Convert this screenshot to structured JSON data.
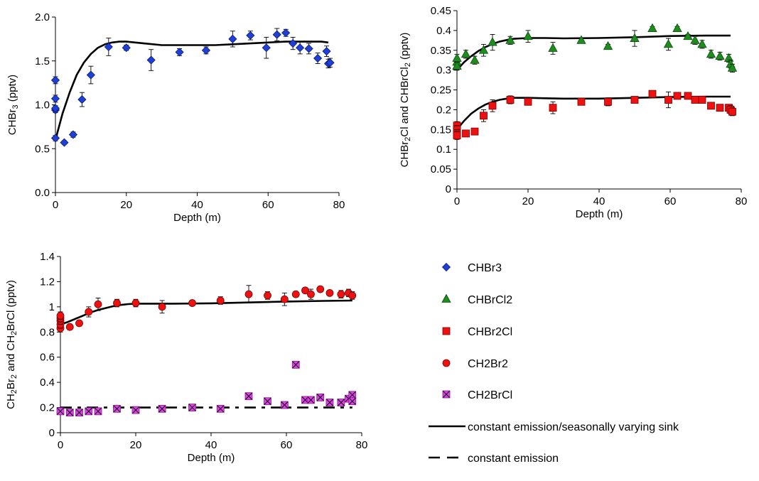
{
  "colors": {
    "CHBr3": "#1f3fd6",
    "CHBrCl2": "#1f8c1f",
    "CHBr2Cl": "#ee1111",
    "CH2Br2": "#ee1111",
    "CH2BrCl": "#e040e8",
    "model": "#000000"
  },
  "legend": {
    "items": [
      {
        "label": "CHBr3",
        "marker": "diamond",
        "color": "#1f3fd6"
      },
      {
        "label": "CHBrCl2",
        "marker": "triangle",
        "color": "#1f8c1f"
      },
      {
        "label": "CHBr2Cl",
        "marker": "square",
        "color": "#ee1111"
      },
      {
        "label": "CH2Br2",
        "marker": "circle",
        "color": "#ee1111"
      },
      {
        "label": "CH2BrCl",
        "marker": "xsquare",
        "color": "#e040e8"
      },
      {
        "label": "constant emission/seasonally varying sink",
        "marker": "solid-line",
        "color": "#000000"
      },
      {
        "label": "constant emission",
        "marker": "dashed-line",
        "color": "#000000"
      }
    ]
  },
  "chart_data": [
    {
      "type": "scatter",
      "title": "",
      "xlabel": "Depth (m)",
      "ylabel": "CHBr3 (pptv)",
      "xlim": [
        0,
        80
      ],
      "ylim": [
        0,
        2.0
      ],
      "xticks": [
        "0",
        "20",
        "40",
        "60",
        "80"
      ],
      "yticks": [
        "0.0",
        "0.5",
        "1.0",
        "1.5",
        "2.0"
      ],
      "grid": false,
      "series": [
        {
          "key": "CHBr3",
          "marker": "diamond",
          "x": [
            0,
            0,
            0,
            0,
            0,
            2.5,
            5,
            7.5,
            10,
            15,
            20,
            27,
            35,
            42.5,
            50,
            55,
            59.5,
            62.5,
            65,
            67,
            69,
            71.5,
            74,
            76.5,
            77,
            77.5
          ],
          "y": [
            0.62,
            0.94,
            0.96,
            1.07,
            1.28,
            0.57,
            0.66,
            1.06,
            1.34,
            1.66,
            1.65,
            1.51,
            1.6,
            1.62,
            1.75,
            1.79,
            1.65,
            1.8,
            1.82,
            1.7,
            1.65,
            1.64,
            1.53,
            1.61,
            1.47,
            1.48
          ],
          "err": [
            0.03,
            0.03,
            0.03,
            0.04,
            0.04,
            0.02,
            0.03,
            0.08,
            0.1,
            0.1,
            0.03,
            0.12,
            0.04,
            0.04,
            0.09,
            0.05,
            0.12,
            0.07,
            0.04,
            0.07,
            0.07,
            0.06,
            0.06,
            0.06,
            0.05,
            0.05
          ]
        }
      ],
      "model_lines": [
        {
          "style": "solid",
          "x": [
            0,
            2,
            4,
            6,
            8,
            10,
            12,
            14,
            16,
            18,
            20,
            25,
            30,
            35,
            40,
            45,
            50,
            55,
            60,
            65,
            70,
            75,
            77
          ],
          "y": [
            0.6,
            0.9,
            1.14,
            1.34,
            1.48,
            1.58,
            1.65,
            1.69,
            1.71,
            1.72,
            1.72,
            1.7,
            1.68,
            1.68,
            1.68,
            1.68,
            1.69,
            1.7,
            1.71,
            1.72,
            1.72,
            1.72,
            1.71
          ]
        }
      ]
    },
    {
      "type": "scatter",
      "title": "",
      "xlabel": "Depth (m)",
      "ylabel": "CHBr2Cl and CHBrCl2 (pptv)",
      "xlim": [
        0,
        80
      ],
      "ylim": [
        0,
        0.45
      ],
      "xticks": [
        "0",
        "20",
        "40",
        "60",
        "80"
      ],
      "yticks": [
        "0",
        "0.05",
        "0.1",
        "0.15",
        "0.2",
        "0.25",
        "0.3",
        "0.35",
        "0.4",
        "0.45"
      ],
      "grid": false,
      "series": [
        {
          "key": "CHBrCl2",
          "marker": "triangle",
          "x": [
            0,
            0,
            0,
            0,
            2.5,
            5,
            7.5,
            10,
            15,
            20,
            27,
            35,
            42.5,
            50,
            55,
            59.5,
            62,
            65,
            67,
            69,
            71.5,
            74,
            76.5,
            77,
            77.5
          ],
          "y": [
            0.31,
            0.32,
            0.33,
            0.31,
            0.34,
            0.325,
            0.35,
            0.37,
            0.375,
            0.385,
            0.355,
            0.375,
            0.36,
            0.38,
            0.405,
            0.365,
            0.405,
            0.385,
            0.375,
            0.365,
            0.34,
            0.335,
            0.33,
            0.315,
            0.305
          ],
          "err": [
            0.01,
            0.01,
            0.01,
            0.01,
            0.01,
            0.01,
            0.015,
            0.02,
            0.01,
            0.015,
            0.015,
            0.005,
            0.005,
            0.02,
            0.005,
            0.015,
            0.005,
            0.005,
            0.01,
            0.01,
            0.01,
            0.01,
            0.01,
            0.01,
            0.01
          ]
        },
        {
          "key": "CHBr2Cl",
          "marker": "square",
          "x": [
            0,
            0,
            0,
            0,
            2.5,
            5,
            7.5,
            10,
            15,
            20,
            27,
            35,
            42.5,
            50,
            55,
            59.5,
            62,
            65,
            67,
            69,
            71.5,
            74,
            76.5,
            77,
            77.5
          ],
          "y": [
            0.16,
            0.15,
            0.14,
            0.135,
            0.14,
            0.145,
            0.185,
            0.21,
            0.225,
            0.22,
            0.205,
            0.22,
            0.22,
            0.225,
            0.24,
            0.225,
            0.235,
            0.235,
            0.225,
            0.225,
            0.21,
            0.205,
            0.205,
            0.2,
            0.195
          ],
          "err": [
            0.01,
            0.01,
            0.01,
            0.01,
            0.005,
            0.005,
            0.015,
            0.015,
            0.01,
            0.005,
            0.015,
            0.005,
            0.01,
            0.005,
            0.005,
            0.02,
            0.005,
            0.005,
            0.005,
            0.005,
            0.005,
            0.005,
            0.005,
            0.01,
            0.01
          ]
        }
      ],
      "model_lines": [
        {
          "style": "solid",
          "x": [
            0,
            2,
            4,
            6,
            8,
            10,
            12,
            14,
            16,
            20,
            25,
            30,
            40,
            50,
            60,
            70,
            77
          ],
          "y": [
            0.3,
            0.32,
            0.335,
            0.348,
            0.358,
            0.366,
            0.372,
            0.376,
            0.379,
            0.381,
            0.381,
            0.38,
            0.381,
            0.383,
            0.386,
            0.387,
            0.387
          ]
        },
        {
          "style": "solid",
          "x": [
            0,
            2,
            4,
            6,
            8,
            10,
            12,
            14,
            16,
            20,
            25,
            30,
            40,
            50,
            60,
            70,
            77
          ],
          "y": [
            0.15,
            0.172,
            0.19,
            0.203,
            0.213,
            0.22,
            0.225,
            0.228,
            0.23,
            0.23,
            0.229,
            0.228,
            0.228,
            0.23,
            0.232,
            0.233,
            0.233
          ]
        }
      ]
    },
    {
      "type": "scatter",
      "title": "",
      "xlabel": "Depth (m)",
      "ylabel": "CH2Br2 and CH2BrCl (pptv)",
      "xlim": [
        0,
        80
      ],
      "ylim": [
        0,
        1.4
      ],
      "xticks": [
        "0",
        "20",
        "40",
        "60",
        "80"
      ],
      "yticks": [
        "0",
        "0.2",
        "0.4",
        "0.6",
        "0.8",
        "1",
        "1.2",
        "1.4"
      ],
      "grid": false,
      "series": [
        {
          "key": "CH2Br2",
          "marker": "circle",
          "x": [
            0,
            0,
            0,
            0,
            0,
            2.5,
            5,
            7.5,
            10,
            15,
            20,
            27,
            35,
            42.5,
            50,
            55,
            59.5,
            62.5,
            65,
            66.5,
            69,
            71.5,
            74.5,
            76.5,
            77.5
          ],
          "y": [
            0.83,
            0.86,
            0.89,
            0.91,
            0.93,
            0.84,
            0.87,
            0.96,
            1.02,
            1.03,
            1.03,
            1.0,
            1.03,
            1.05,
            1.1,
            1.09,
            1.06,
            1.1,
            1.13,
            1.1,
            1.14,
            1.11,
            1.1,
            1.11,
            1.09
          ],
          "err": [
            0.03,
            0.03,
            0.03,
            0.03,
            0.03,
            0.02,
            0.02,
            0.04,
            0.05,
            0.03,
            0.03,
            0.05,
            0.02,
            0.03,
            0.07,
            0.03,
            0.05,
            0.02,
            0.02,
            0.04,
            0.02,
            0.02,
            0.03,
            0.03,
            0.03
          ]
        },
        {
          "key": "CH2BrCl",
          "marker": "xsquare",
          "x": [
            0,
            2.5,
            5,
            7.5,
            10,
            15,
            20,
            27,
            35,
            42.5,
            50,
            55,
            59.5,
            62.5,
            65,
            66.5,
            69,
            71.5,
            74.5,
            76.5,
            77.5,
            77.5
          ],
          "y": [
            0.17,
            0.16,
            0.16,
            0.17,
            0.17,
            0.19,
            0.18,
            0.19,
            0.2,
            0.19,
            0.29,
            0.25,
            0.22,
            0.54,
            0.26,
            0.26,
            0.28,
            0.24,
            0.24,
            0.27,
            0.3,
            0.25
          ],
          "err": []
        }
      ],
      "model_lines": [
        {
          "style": "solid",
          "x": [
            0,
            2,
            4,
            6,
            8,
            10,
            12,
            14,
            16,
            18,
            20,
            30,
            40,
            50,
            60,
            70,
            77.5
          ],
          "y": [
            0.86,
            0.88,
            0.905,
            0.93,
            0.955,
            0.975,
            0.99,
            1.005,
            1.015,
            1.022,
            1.025,
            1.025,
            1.028,
            1.035,
            1.042,
            1.047,
            1.05
          ]
        },
        {
          "style": "dashed",
          "x": [
            0,
            20,
            40,
            60,
            77.5
          ],
          "y": [
            0.2,
            0.2,
            0.2,
            0.2,
            0.2
          ]
        }
      ]
    }
  ]
}
